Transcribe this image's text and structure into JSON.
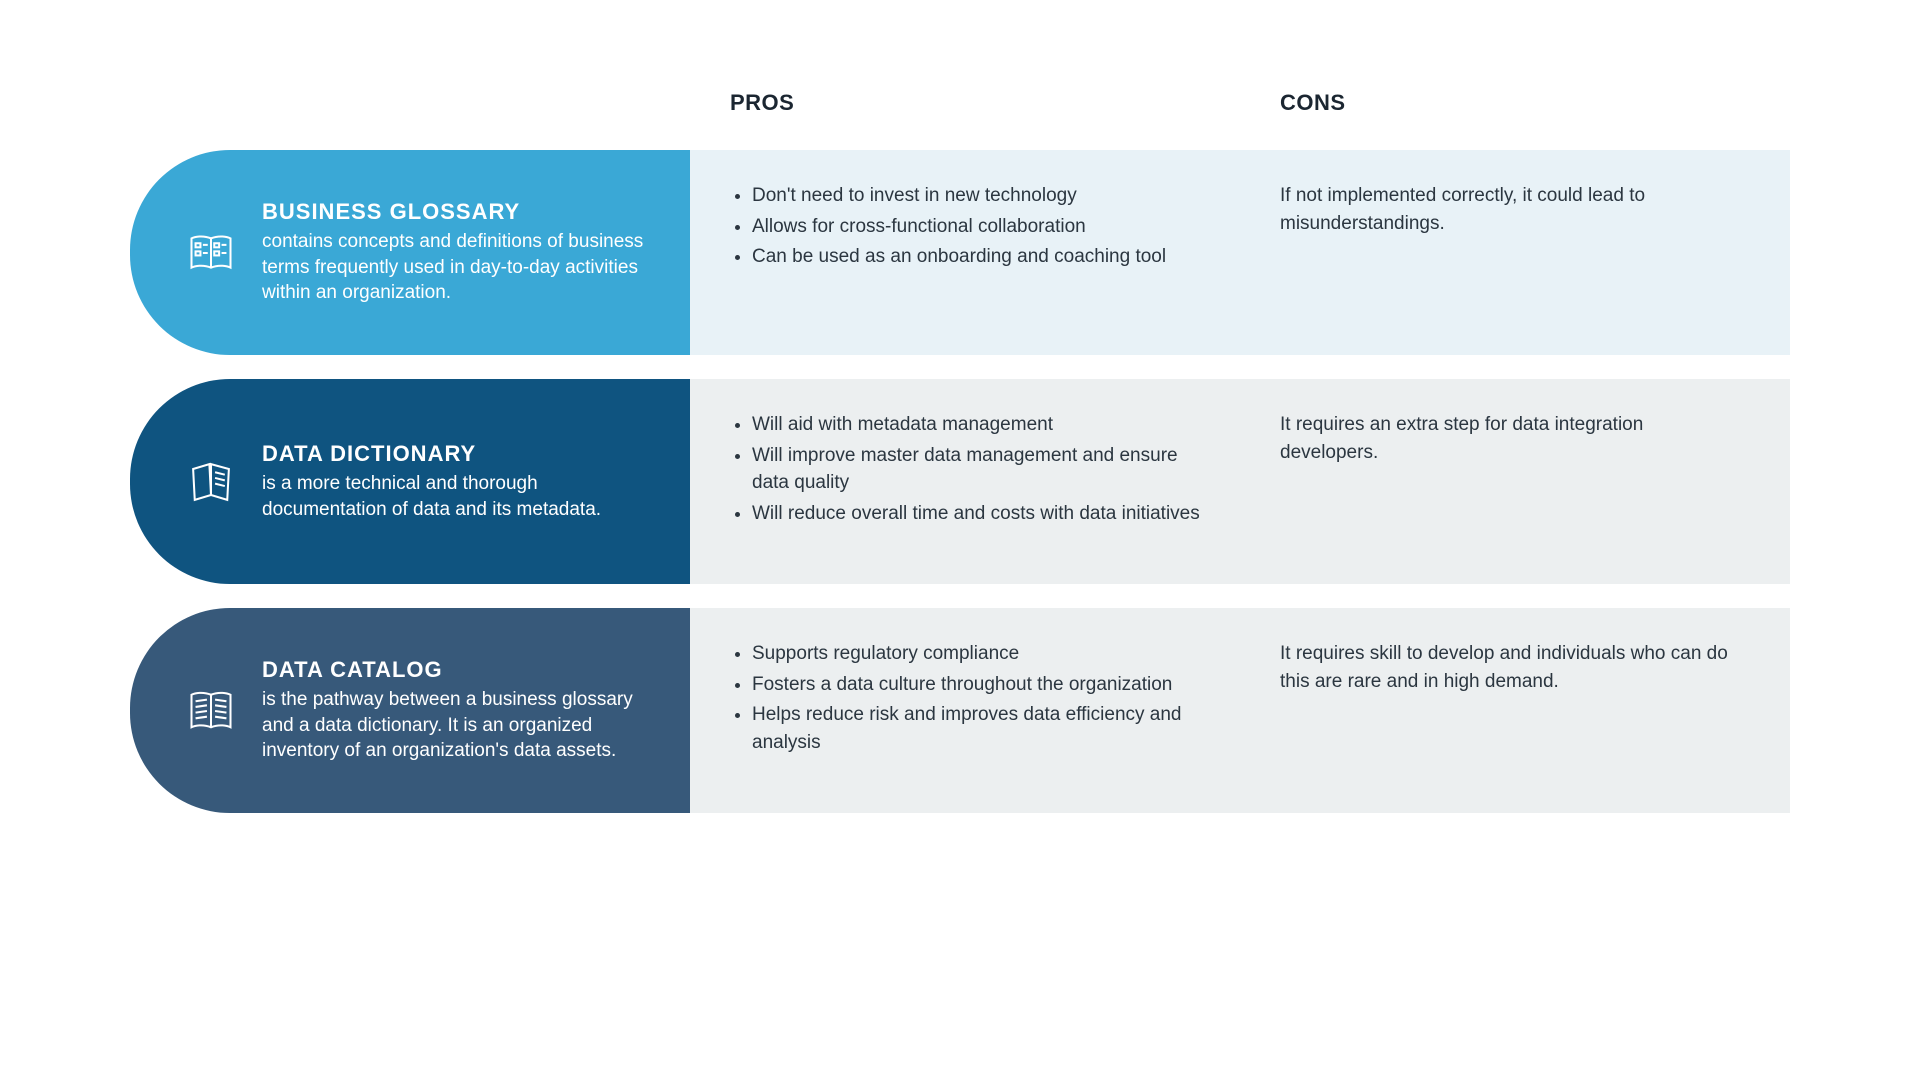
{
  "headers": {
    "pros": "PROS",
    "cons": "CONS"
  },
  "rows": [
    {
      "title": "BUSINESS GLOSSARY",
      "desc": "contains concepts and definitions of business terms frequently used in day-to-day activities within an organization.",
      "pros": [
        "Don't need to invest in new technology",
        "Allows for cross-functional collaboration",
        "Can be used as an onboarding and coaching tool"
      ],
      "cons": "If not implemented correctly, it could lead to misunderstandings.",
      "label_bg": "#3aa8d6",
      "content_bg": "#e8f2f7",
      "icon": "glossary"
    },
    {
      "title": "DATA DICTIONARY",
      "desc": "is a more technical and thorough documentation of data and its metadata.",
      "pros": [
        "Will aid with metadata management",
        "Will improve master data management and ensure data quality",
        "Will reduce overall time and costs with data initiatives"
      ],
      "cons": "It requires an extra step for data integration developers.",
      "label_bg": "#0f5480",
      "content_bg": "#eceff0",
      "icon": "dictionary"
    },
    {
      "title": "DATA CATALOG",
      "desc": "is the pathway between a business glossary and a data dictionary. It is an organized inventory of an organization's data assets.",
      "pros": [
        "Supports regulatory compliance",
        "Fosters a data culture throughout the organization",
        "Helps reduce risk and improves data efficiency and analysis"
      ],
      "cons": "It requires skill to develop and individuals who can do this are rare and in high demand.",
      "label_bg": "#37597a",
      "content_bg": "#eceff0",
      "icon": "catalog"
    }
  ]
}
